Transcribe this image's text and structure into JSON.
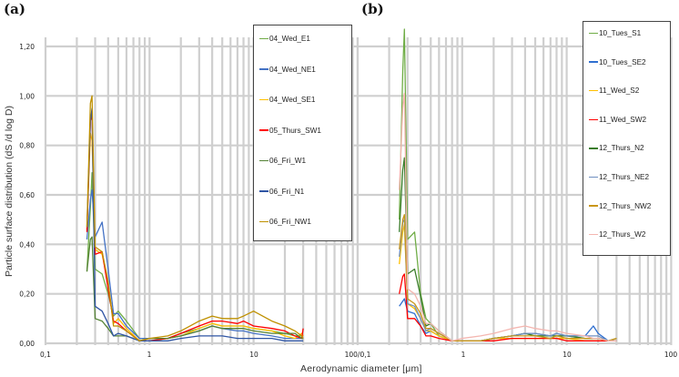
{
  "figure": {
    "ylabel": "Particle surface distribution (dS /d log D)",
    "xlabel": "Aerodynamic diameter [μm]",
    "shared_x_tick_label": "100/0,1"
  },
  "panels": [
    {
      "label": "(a)",
      "legend": [
        {
          "name": "04_Wed_E1",
          "color": "#70ad47"
        },
        {
          "name": "04_Wed_NE1",
          "color": "#4472c4"
        },
        {
          "name": "04_Wed_SE1",
          "color": "#ffc000"
        },
        {
          "name": "05_Thurs_SW1",
          "color": "#ff0000"
        },
        {
          "name": "06_Fri_W1",
          "color": "#548235"
        },
        {
          "name": "06_Fri_N1",
          "color": "#2f55a4"
        },
        {
          "name": "06_Fri_NW1",
          "color": "#bf9000"
        }
      ]
    },
    {
      "label": "(b)",
      "legend": [
        {
          "name": "10_Tues_S1",
          "color": "#70ad47"
        },
        {
          "name": "10_Tues_SE2",
          "color": "#2f6fd0"
        },
        {
          "name": "11_Wed_S2",
          "color": "#ffc000"
        },
        {
          "name": "11_Wed_SW2",
          "color": "#ff0000"
        },
        {
          "name": "12_Thurs_N2",
          "color": "#3a7d2a"
        },
        {
          "name": "12_Thurs_NE2",
          "color": "#6f8fc0"
        },
        {
          "name": "12_Thurs_NW2",
          "color": "#c9961a"
        },
        {
          "name": "12_Thurs_W2",
          "color": "#f4b6b0"
        }
      ]
    }
  ],
  "chart_data": [
    {
      "type": "line",
      "title": "(a)",
      "xlabel": "Aerodynamic diameter [μm]",
      "ylabel": "Particle surface distribution (dS /d log D)",
      "xscale": "log",
      "xlim": [
        0.1,
        100
      ],
      "ylim": [
        0,
        1.3
      ],
      "y_ticks": [
        "0,00",
        "0,20",
        "0,40",
        "0,60",
        "0,80",
        "1,00",
        "1,20"
      ],
      "x_ticks": [
        "0,1",
        "1",
        "10"
      ],
      "grid": true,
      "legend_position": "upper-right-inside",
      "x": [
        0.25,
        0.27,
        0.28,
        0.3,
        0.35,
        0.4,
        0.45,
        0.5,
        0.6,
        0.8,
        1.0,
        1.5,
        2.0,
        3.0,
        4.0,
        5.0,
        7.0,
        8.0,
        10.0,
        15.0,
        20.0,
        25.0,
        29.0,
        30.0
      ],
      "series": [
        {
          "name": "04_Wed_E1",
          "values": [
            0.29,
            0.55,
            0.69,
            0.3,
            0.28,
            0.2,
            0.11,
            0.13,
            0.09,
            0.02,
            0.02,
            0.02,
            0.04,
            0.06,
            0.08,
            0.07,
            0.07,
            0.07,
            0.06,
            0.05,
            0.04,
            0.03,
            0.03,
            0.03
          ]
        },
        {
          "name": "04_Wed_NE1",
          "values": [
            0.42,
            0.58,
            0.62,
            0.43,
            0.49,
            0.3,
            0.12,
            0.12,
            0.07,
            0.02,
            0.02,
            0.02,
            0.03,
            0.05,
            0.07,
            0.06,
            0.05,
            0.05,
            0.04,
            0.03,
            0.02,
            0.02,
            0.02,
            0.02
          ]
        },
        {
          "name": "04_Wed_SE1",
          "values": [
            0.46,
            0.85,
            0.82,
            0.38,
            0.36,
            0.24,
            0.08,
            0.1,
            0.06,
            0.01,
            0.01,
            0.02,
            0.03,
            0.06,
            0.08,
            0.07,
            0.07,
            0.07,
            0.06,
            0.05,
            0.03,
            0.02,
            0.04,
            0.03
          ]
        },
        {
          "name": "05_Thurs_SW1",
          "values": [
            0.45,
            0.9,
            0.92,
            0.36,
            0.37,
            0.22,
            0.09,
            0.08,
            0.05,
            0.01,
            0.01,
            0.02,
            0.04,
            0.07,
            0.09,
            0.09,
            0.08,
            0.09,
            0.07,
            0.06,
            0.05,
            0.03,
            0.02,
            0.06
          ]
        },
        {
          "name": "06_Fri_W1",
          "values": [
            0.29,
            0.42,
            0.43,
            0.1,
            0.09,
            0.06,
            0.03,
            0.03,
            0.03,
            0.01,
            0.02,
            0.02,
            0.03,
            0.05,
            0.07,
            0.06,
            0.06,
            0.06,
            0.05,
            0.04,
            0.04,
            0.04,
            0.02,
            0.02
          ]
        },
        {
          "name": "06_Fri_N1",
          "values": [
            0.47,
            0.9,
            0.95,
            0.15,
            0.13,
            0.08,
            0.03,
            0.04,
            0.03,
            0.01,
            0.01,
            0.01,
            0.02,
            0.03,
            0.03,
            0.03,
            0.02,
            0.02,
            0.02,
            0.02,
            0.01,
            0.01,
            0.01,
            0.01
          ]
        },
        {
          "name": "06_Fri_NW1",
          "values": [
            0.47,
            0.97,
            1.0,
            0.39,
            0.37,
            0.25,
            0.07,
            0.07,
            0.05,
            0.01,
            0.02,
            0.03,
            0.05,
            0.09,
            0.11,
            0.1,
            0.1,
            0.11,
            0.13,
            0.09,
            0.07,
            0.05,
            0.03,
            0.02
          ]
        }
      ]
    },
    {
      "type": "line",
      "title": "(b)",
      "xlabel": "Aerodynamic diameter [μm]",
      "ylabel": "Particle surface distribution (dS /d log D)",
      "xscale": "log",
      "xlim": [
        0.1,
        100
      ],
      "ylim": [
        0,
        1.3
      ],
      "x_ticks": [
        "1",
        "10",
        "100"
      ],
      "grid": true,
      "legend_position": "upper-right-inside",
      "x": [
        0.25,
        0.27,
        0.28,
        0.3,
        0.35,
        0.4,
        0.45,
        0.5,
        0.6,
        0.8,
        1.0,
        1.5,
        2.0,
        3.0,
        4.0,
        5.0,
        7.0,
        8.0,
        10.0,
        15.0,
        18.0,
        20.0,
        25.0,
        30.0
      ],
      "series": [
        {
          "name": "10_Tues_S1",
          "values": [
            0.5,
            1.1,
            1.27,
            0.42,
            0.45,
            0.2,
            0.1,
            0.08,
            0.03,
            0.01,
            0.01,
            0.01,
            0.02,
            0.03,
            0.04,
            0.03,
            0.03,
            0.03,
            0.03,
            0.02,
            0.02,
            0.02,
            0.01,
            0.02
          ]
        },
        {
          "name": "10_Tues_SE2",
          "values": [
            0.15,
            0.17,
            0.18,
            0.13,
            0.12,
            0.07,
            0.04,
            0.05,
            0.03,
            0.01,
            0.01,
            0.01,
            0.02,
            0.03,
            0.04,
            0.04,
            0.03,
            0.04,
            0.03,
            0.03,
            0.07,
            0.04,
            0.01,
            0.01
          ]
        },
        {
          "name": "11_Wed_S2",
          "values": [
            0.32,
            0.45,
            0.48,
            0.16,
            0.14,
            0.1,
            0.05,
            0.05,
            0.03,
            0.01,
            0.01,
            0.01,
            0.02,
            0.02,
            0.02,
            0.02,
            0.02,
            0.02,
            0.02,
            0.01,
            0.01,
            0.01,
            0.01,
            0.02
          ]
        },
        {
          "name": "11_Wed_SW2",
          "values": [
            0.2,
            0.27,
            0.28,
            0.1,
            0.1,
            0.07,
            0.03,
            0.03,
            0.02,
            0.01,
            0.01,
            0.01,
            0.01,
            0.02,
            0.02,
            0.02,
            0.02,
            0.02,
            0.01,
            0.01,
            0.01,
            0.01,
            0.01,
            0.01
          ]
        },
        {
          "name": "12_Thurs_N2",
          "values": [
            0.45,
            0.7,
            0.75,
            0.28,
            0.3,
            0.19,
            0.07,
            0.08,
            0.05,
            0.01,
            0.01,
            0.01,
            0.02,
            0.03,
            0.04,
            0.03,
            0.03,
            0.03,
            0.03,
            0.02,
            0.02,
            0.02,
            0.01,
            0.01
          ]
        },
        {
          "name": "12_Thurs_NE2",
          "values": [
            0.35,
            0.49,
            0.5,
            0.16,
            0.15,
            0.1,
            0.05,
            0.06,
            0.04,
            0.01,
            0.01,
            0.01,
            0.02,
            0.03,
            0.04,
            0.04,
            0.03,
            0.04,
            0.03,
            0.03,
            0.03,
            0.03,
            0.01,
            0.02
          ]
        },
        {
          "name": "12_Thurs_NW2",
          "values": [
            0.38,
            0.5,
            0.52,
            0.18,
            0.16,
            0.12,
            0.06,
            0.06,
            0.04,
            0.01,
            0.01,
            0.01,
            0.02,
            0.03,
            0.03,
            0.03,
            0.02,
            0.03,
            0.02,
            0.02,
            0.02,
            0.02,
            0.01,
            0.02
          ]
        },
        {
          "name": "12_Thurs_W2",
          "values": [
            0.62,
            0.95,
            1.01,
            0.22,
            0.2,
            0.15,
            0.08,
            0.08,
            0.05,
            0.01,
            0.02,
            0.03,
            0.04,
            0.06,
            0.07,
            0.06,
            0.05,
            0.05,
            0.04,
            0.03,
            0.02,
            0.02,
            0.01,
            0.01
          ]
        }
      ]
    }
  ]
}
